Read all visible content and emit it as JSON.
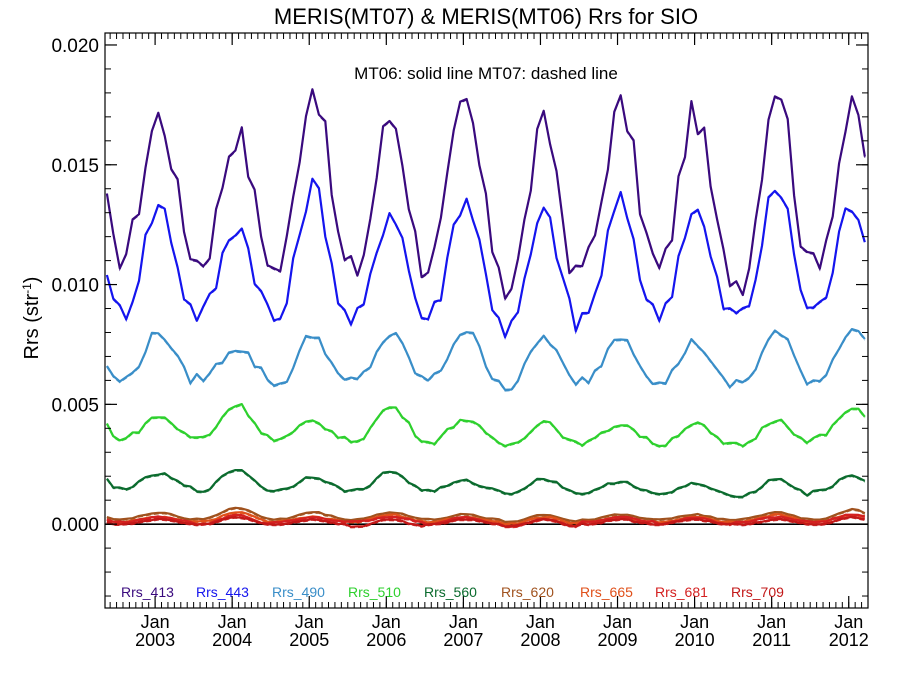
{
  "chart_data": {
    "type": "line",
    "title": "MERIS(MT07) & MERIS(MT06)  Rrs for SIO",
    "ylabel_main": "Rrs (str",
    "ylabel_sup": "-1",
    "ylabel_close": ")",
    "annotation": "MT06: solid line   MT07: dashed line",
    "xlim": [
      2002.35,
      2012.25
    ],
    "ylim": [
      -0.0035,
      0.0205
    ],
    "yticks": [
      {
        "value": 0.0,
        "label": "0.000"
      },
      {
        "value": 0.005,
        "label": "0.005"
      },
      {
        "value": 0.01,
        "label": "0.010"
      },
      {
        "value": 0.015,
        "label": "0.015"
      },
      {
        "value": 0.02,
        "label": "0.020"
      }
    ],
    "xticks": [
      {
        "value": 2003,
        "month": "Jan",
        "year": "2003"
      },
      {
        "value": 2004,
        "month": "Jan",
        "year": "2004"
      },
      {
        "value": 2005,
        "month": "Jan",
        "year": "2005"
      },
      {
        "value": 2006,
        "month": "Jan",
        "year": "2006"
      },
      {
        "value": 2007,
        "month": "Jan",
        "year": "2007"
      },
      {
        "value": 2008,
        "month": "Jan",
        "year": "2008"
      },
      {
        "value": 2009,
        "month": "Jan",
        "year": "2009"
      },
      {
        "value": 2010,
        "month": "Jan",
        "year": "2010"
      },
      {
        "value": 2011,
        "month": "Jan",
        "year": "2011"
      },
      {
        "value": 2012,
        "month": "Jan",
        "year": "2012"
      }
    ],
    "legend_position": "bottom, single row inside plot",
    "series": [
      {
        "name": "Rrs_413",
        "color": "#3a0a7e",
        "peak_time": [
          0.05,
          0.06,
          0.05,
          0.06,
          0.02,
          0.05,
          0.04,
          0.0,
          0.07,
          0.05
        ],
        "peak_value": [
          0.017,
          0.0163,
          0.0183,
          0.017,
          0.0175,
          0.0166,
          0.0174,
          0.0171,
          0.0184,
          0.0172
        ],
        "trough_value": [
          0.0113,
          0.011,
          0.0106,
          0.0106,
          0.0109,
          0.0099,
          0.0109,
          0.0105,
          0.0102,
          0.0112
        ],
        "start_value": 0.0138
      },
      {
        "name": "Rrs_443",
        "color": "#1515ee",
        "peak_time": [
          0.05,
          0.06,
          0.05,
          0.06,
          0.02,
          0.05,
          0.04,
          0.0,
          0.07,
          0.05
        ],
        "peak_value": [
          0.0133,
          0.0125,
          0.0141,
          0.0131,
          0.0136,
          0.0129,
          0.0134,
          0.0131,
          0.014,
          0.0134
        ],
        "trough_value": [
          0.0089,
          0.0088,
          0.0085,
          0.0085,
          0.0087,
          0.0081,
          0.0087,
          0.0088,
          0.0087,
          0.009
        ],
        "start_value": 0.0104
      },
      {
        "name": "Rrs_490",
        "color": "#3a8ec8",
        "peak_time": [
          0.05,
          0.06,
          0.05,
          0.06,
          0.02,
          0.05,
          0.04,
          0.0,
          0.07,
          0.05
        ],
        "peak_value": [
          0.008,
          0.0074,
          0.0079,
          0.0079,
          0.0081,
          0.0078,
          0.0079,
          0.0076,
          0.008,
          0.0082
        ],
        "trough_value": [
          0.006,
          0.0061,
          0.0058,
          0.006,
          0.006,
          0.0057,
          0.006,
          0.0058,
          0.0059,
          0.006
        ],
        "start_value": 0.0066
      },
      {
        "name": "Rrs_510",
        "color": "#2ed02e",
        "peak_time": [
          0.05,
          0.06,
          0.05,
          0.06,
          0.02,
          0.05,
          0.04,
          0.0,
          0.07,
          0.05
        ],
        "peak_value": [
          0.0045,
          0.005,
          0.0043,
          0.0049,
          0.0044,
          0.0043,
          0.0042,
          0.0042,
          0.0044,
          0.0048
        ],
        "trough_value": [
          0.0036,
          0.0036,
          0.0035,
          0.0035,
          0.0034,
          0.0033,
          0.0034,
          0.0033,
          0.0033,
          0.0036
        ],
        "start_value": 0.0042
      },
      {
        "name": "Rrs_560",
        "color": "#0b6b2e",
        "peak_time": [
          0.05,
          0.06,
          0.05,
          0.06,
          0.02,
          0.05,
          0.04,
          0.0,
          0.07,
          0.05
        ],
        "peak_value": [
          0.0021,
          0.0023,
          0.002,
          0.0022,
          0.0018,
          0.0019,
          0.0018,
          0.0017,
          0.0019,
          0.002
        ],
        "trough_value": [
          0.0015,
          0.0014,
          0.0014,
          0.0014,
          0.0014,
          0.0013,
          0.0013,
          0.0012,
          0.0012,
          0.0014
        ],
        "start_value": 0.0019
      },
      {
        "name": "Rrs_620",
        "color": "#a0521e",
        "peak_time": [
          0.05,
          0.06,
          0.05,
          0.06,
          0.02,
          0.05,
          0.04,
          0.0,
          0.07,
          0.05
        ],
        "peak_value": [
          0.0005,
          0.0007,
          0.0005,
          0.0005,
          0.0004,
          0.0004,
          0.0004,
          0.0004,
          0.0005,
          0.0006
        ],
        "trough_value": [
          0.0002,
          0.0002,
          0.0002,
          0.0002,
          0.0002,
          0.0001,
          0.0002,
          0.0002,
          0.0002,
          0.0002
        ],
        "start_value": 0.0003
      },
      {
        "name": "Rrs_665",
        "color": "#e0501a",
        "peak_time": [
          0.05,
          0.06,
          0.05,
          0.06,
          0.02,
          0.05,
          0.04,
          0.0,
          0.07,
          0.05
        ],
        "peak_value": [
          0.0003,
          0.0005,
          0.0003,
          0.0004,
          0.0003,
          0.0003,
          0.0003,
          0.0003,
          0.0004,
          0.0004
        ],
        "trough_value": [
          0.0001,
          0.0001,
          0.0001,
          0.0001,
          0.0001,
          0.0,
          0.0001,
          0.0001,
          0.0001,
          0.0001
        ],
        "start_value": 0.0002
      },
      {
        "name": "Rrs_681",
        "color": "#d42020",
        "peak_time": [
          0.05,
          0.06,
          0.05,
          0.06,
          0.02,
          0.05,
          0.04,
          0.0,
          0.07,
          0.05
        ],
        "peak_value": [
          0.0003,
          0.0004,
          0.0003,
          0.0003,
          0.0003,
          0.0002,
          0.0003,
          0.0003,
          0.0003,
          0.0004
        ],
        "trough_value": [
          0.0001,
          0.0,
          0.0001,
          0.0001,
          0.0,
          -0.0001,
          0.0001,
          0.0,
          0.0001,
          0.0001
        ],
        "start_value": 0.0002
      },
      {
        "name": "Rrs_709",
        "color": "#c21818",
        "peak_time": [
          0.05,
          0.06,
          0.05,
          0.06,
          0.02,
          0.05,
          0.04,
          0.0,
          0.07,
          0.05
        ],
        "peak_value": [
          0.0002,
          0.0003,
          0.0002,
          0.0002,
          0.0002,
          0.0002,
          0.0002,
          0.0002,
          0.0002,
          0.0003
        ],
        "trough_value": [
          0.0,
          0.0,
          0.0,
          -0.0001,
          0.0,
          -0.0001,
          0.0,
          0.0,
          0.0,
          0.0
        ],
        "start_value": 0.0001
      }
    ]
  }
}
